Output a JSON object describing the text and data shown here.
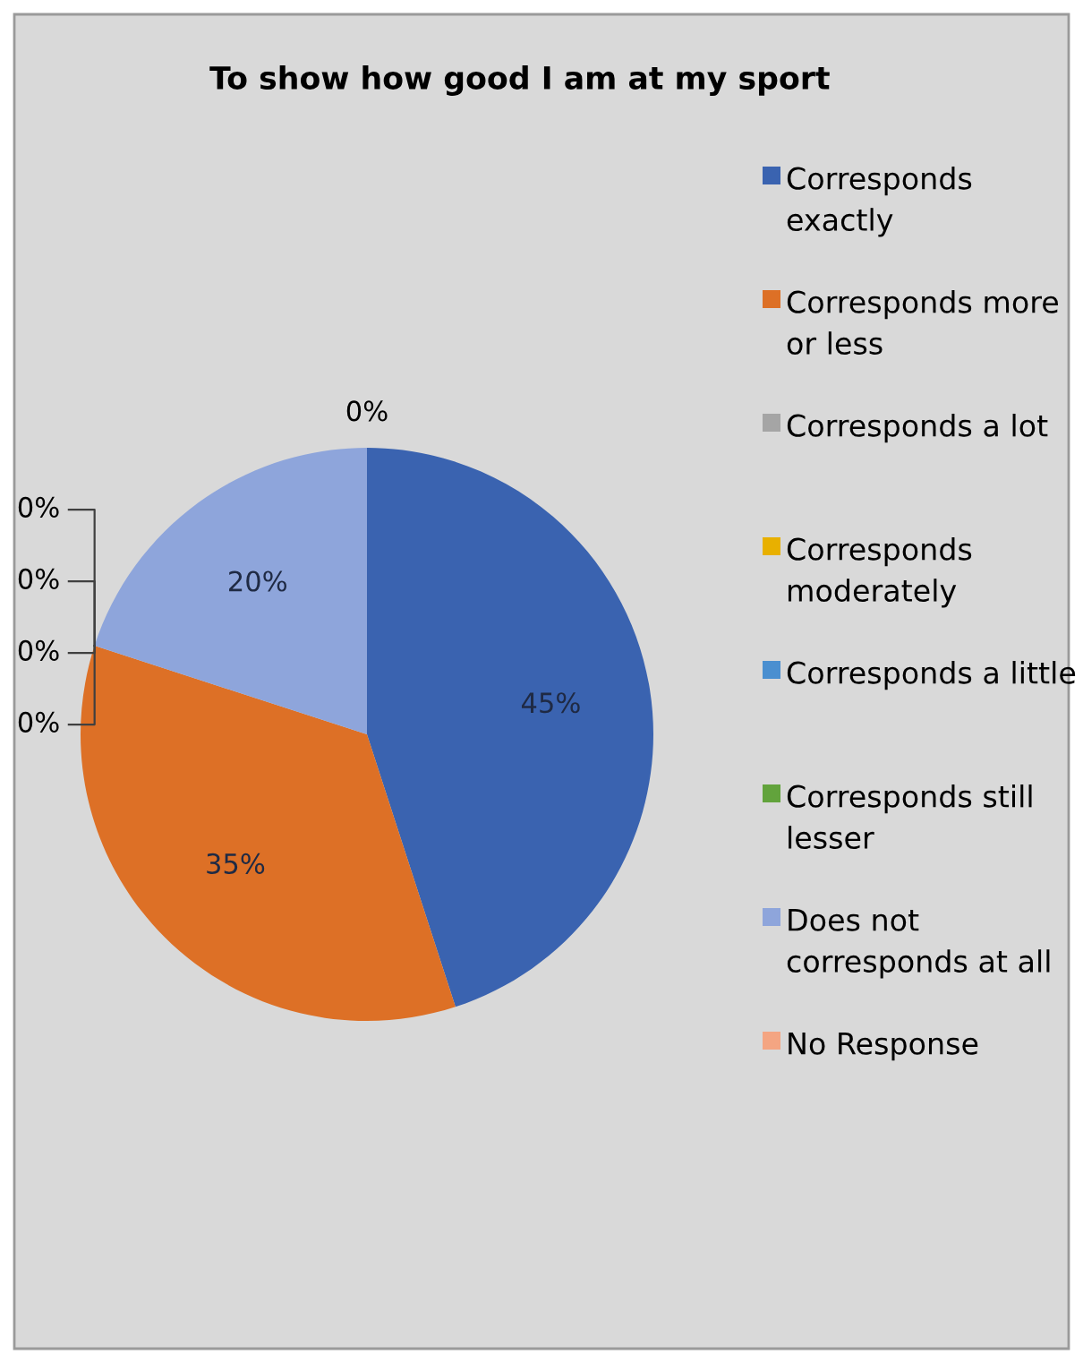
{
  "chart_data": {
    "type": "pie",
    "title": "To show how good I am at my sport",
    "categories": [
      "Corresponds exactly",
      "Corresponds more or less",
      "Corresponds a lot",
      "Corresponds moderately",
      "Corresponds a little",
      "Corresponds still lesser",
      "Does not corresponds at all",
      "No Response"
    ],
    "values": [
      45,
      35,
      0,
      0,
      0,
      0,
      20,
      0
    ],
    "colors": [
      "#3a63b0",
      "#dd7026",
      "#a5a5a5",
      "#e8b000",
      "#4a8fd0",
      "#62a33c",
      "#8ea5db",
      "#f4a582"
    ],
    "value_labels": [
      "45%",
      "35%",
      "0%",
      "0%",
      "0%",
      "0%",
      "20%",
      "0%"
    ],
    "legend": "right"
  }
}
